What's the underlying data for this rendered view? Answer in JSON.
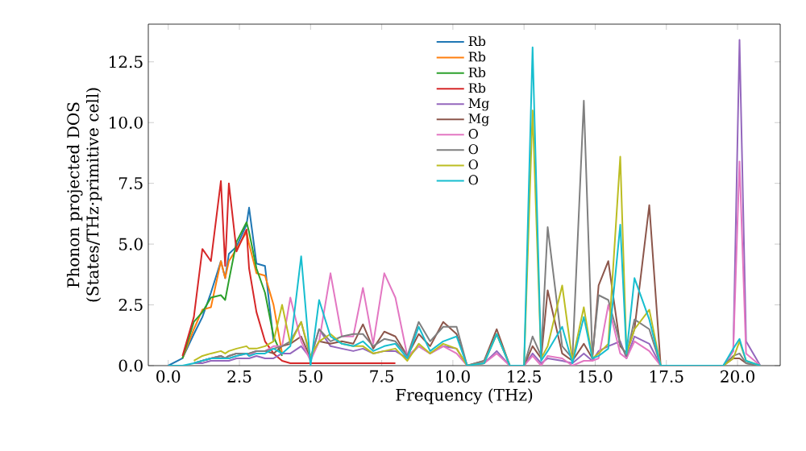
{
  "chart_data": {
    "type": "line",
    "xlabel": "Frequency (THz)",
    "ylabel": "Phonon projected DOS (States/THz·primitive cell)",
    "xlim": [
      -0.7,
      21.5
    ],
    "ylim": [
      0,
      14.05
    ],
    "xticks": [
      {
        "value": 0,
        "label": "0.0"
      },
      {
        "value": 2.5,
        "label": "2.5"
      },
      {
        "value": 5,
        "label": "5.0"
      },
      {
        "value": 7.5,
        "label": "7.5"
      },
      {
        "value": 10,
        "label": "10.0"
      },
      {
        "value": 12.5,
        "label": "12.5"
      },
      {
        "value": 15,
        "label": "15.0"
      },
      {
        "value": 17.5,
        "label": "17.5"
      },
      {
        "value": 20,
        "label": "20.0"
      }
    ],
    "yticks": [
      {
        "value": 0,
        "label": "0.0"
      },
      {
        "value": 2.5,
        "label": "2.5"
      },
      {
        "value": 5,
        "label": "5.0"
      },
      {
        "value": 7.5,
        "label": "7.5"
      },
      {
        "value": 10,
        "label": "10.0"
      },
      {
        "value": 12.5,
        "label": "12.5"
      }
    ],
    "legend": "top",
    "grid": false,
    "marker": "none",
    "line_style": "solid",
    "x": [
      0,
      0.5,
      0.9,
      1.2,
      1.5,
      1.85,
      2.0,
      2.13,
      2.4,
      2.75,
      2.84,
      3.1,
      3.4,
      3.7,
      4.0,
      4.29,
      4.67,
      5.0,
      5.3,
      5.7,
      6.1,
      6.5,
      6.84,
      7.2,
      7.59,
      7.98,
      8.4,
      8.8,
      9.2,
      9.66,
      10.13,
      10.5,
      11.1,
      11.54,
      12.0,
      12.5,
      12.8,
      13.1,
      13.33,
      13.84,
      14.2,
      14.6,
      14.9,
      15.12,
      15.46,
      15.88,
      16.1,
      16.38,
      16.9,
      17.3,
      19.5,
      19.85,
      20.07,
      20.3,
      20.8
    ],
    "series": [
      {
        "name": "Rb",
        "color": "#1f77b4",
        "values": [
          0,
          0.3,
          1.3,
          2.0,
          3.0,
          4.3,
          3.6,
          4.6,
          4.9,
          5.8,
          6.5,
          4.2,
          4.1,
          1.0,
          null,
          null,
          null,
          null,
          null,
          null,
          null,
          null,
          null,
          null,
          null,
          null,
          null,
          null,
          null,
          null,
          null,
          null,
          null,
          null,
          null,
          null,
          null,
          null,
          null,
          null,
          null,
          null,
          null,
          null,
          null,
          null,
          null,
          null,
          null,
          null,
          null,
          null,
          null,
          null,
          null
        ]
      },
      {
        "name": "Rb",
        "color": "#ff7f0e",
        "values": [
          null,
          0.3,
          1.5,
          2.3,
          2.4,
          4.3,
          3.6,
          4.3,
          4.8,
          5.5,
          5.0,
          3.8,
          3.7,
          2.5,
          0.5,
          null,
          null,
          null,
          null,
          null,
          null,
          null,
          null,
          null,
          null,
          null,
          null,
          null,
          null,
          null,
          null,
          null,
          null,
          null,
          null,
          null,
          null,
          null,
          null,
          null,
          null,
          null,
          null,
          null,
          null,
          null,
          null,
          null,
          null,
          null,
          null,
          null,
          null,
          null,
          null
        ]
      },
      {
        "name": "Rb",
        "color": "#2ca02c",
        "values": [
          null,
          0.3,
          1.8,
          2.2,
          2.8,
          2.9,
          2.7,
          3.5,
          5.1,
          5.9,
          5.5,
          4.0,
          3.0,
          1.2,
          0.4,
          null,
          null,
          null,
          null,
          null,
          null,
          null,
          null,
          null,
          null,
          null,
          null,
          null,
          null,
          null,
          null,
          null,
          null,
          null,
          null,
          null,
          null,
          null,
          null,
          null,
          null,
          null,
          null,
          null,
          null,
          null,
          null,
          null,
          null,
          null,
          null,
          null,
          null,
          null,
          null
        ]
      },
      {
        "name": "Rb",
        "color": "#d62728",
        "values": [
          null,
          0.4,
          2.0,
          4.8,
          4.3,
          7.6,
          4.1,
          7.5,
          4.7,
          5.6,
          4.0,
          2.2,
          1.0,
          0.5,
          0.2,
          0.1,
          0.1,
          0.1,
          0.1,
          0.1,
          0.1,
          0.1,
          0.1,
          0.1,
          0.1,
          0.1,
          null,
          null,
          null,
          null,
          null,
          null,
          null,
          null,
          null,
          null,
          null,
          null,
          null,
          null,
          null,
          null,
          null,
          null,
          null,
          null,
          null,
          null,
          null,
          null,
          null,
          null,
          null,
          null,
          null
        ]
      },
      {
        "name": "Mg",
        "color": "#9467bd",
        "values": [
          null,
          null,
          0.1,
          0.1,
          0.2,
          0.2,
          0.2,
          0.2,
          0.3,
          0.3,
          0.3,
          0.4,
          0.3,
          0.3,
          0.5,
          0.5,
          0.8,
          0.3,
          1.5,
          0.8,
          0.7,
          0.6,
          0.7,
          0.5,
          0.6,
          0.6,
          0.3,
          0.8,
          0.5,
          0.8,
          0.7,
          0,
          0.1,
          0.6,
          0,
          0,
          0.5,
          0.1,
          0.3,
          0.2,
          0.1,
          0.5,
          0.2,
          0.6,
          0.8,
          1.0,
          0.3,
          1.2,
          0.9,
          0,
          0,
          0.6,
          13.4,
          1.0,
          0
        ]
      },
      {
        "name": "Mg",
        "color": "#8c564b",
        "values": [
          null,
          null,
          0.1,
          0.2,
          0.3,
          0.4,
          0.3,
          0.4,
          0.5,
          0.5,
          0.5,
          0.6,
          0.6,
          0.5,
          0.8,
          0.9,
          1.2,
          0.3,
          1.0,
          0.9,
          1.0,
          0.9,
          1.7,
          0.7,
          1.4,
          1.2,
          0.4,
          1.3,
          0.8,
          1.8,
          1.3,
          0,
          0.2,
          1.5,
          0,
          0,
          0.8,
          0.3,
          3.1,
          0.5,
          0.2,
          0.9,
          0.3,
          3.3,
          4.3,
          0.8,
          0.5,
          1.5,
          6.6,
          0,
          0,
          0.3,
          0.3,
          0.1,
          0
        ]
      },
      {
        "name": "O",
        "color": "#e377c2",
        "values": [
          null,
          null,
          0.1,
          0.2,
          0.3,
          0.4,
          0.3,
          0.3,
          0.4,
          0.5,
          0.4,
          0.6,
          0.6,
          0.8,
          0.8,
          2.8,
          1.0,
          0.2,
          1.0,
          3.8,
          1.2,
          1.2,
          3.2,
          0.9,
          3.8,
          2.8,
          0.4,
          0.8,
          0.5,
          0.8,
          0.5,
          0,
          0.1,
          0.5,
          0,
          0,
          0.4,
          0,
          0.4,
          0.3,
          0,
          0.2,
          0.2,
          0.3,
          2.5,
          0.5,
          0.3,
          1.0,
          0.6,
          0,
          0,
          0.6,
          8.4,
          0.5,
          0
        ]
      },
      {
        "name": "O",
        "color": "#7f7f7f",
        "values": [
          null,
          null,
          0.1,
          0.2,
          0.3,
          0.4,
          0.3,
          0.4,
          0.5,
          0.5,
          0.5,
          0.6,
          0.6,
          0.7,
          0.8,
          1.0,
          1.8,
          0.3,
          1.5,
          1.0,
          1.2,
          1.3,
          1.3,
          0.8,
          1.1,
          1.0,
          0.4,
          1.8,
          1.0,
          1.6,
          1.6,
          0,
          0.2,
          1.3,
          0,
          0,
          1.2,
          0.4,
          5.7,
          0.8,
          0.3,
          10.9,
          0.4,
          2.9,
          2.7,
          0.9,
          0.4,
          1.9,
          1.5,
          0,
          0,
          0.4,
          0.5,
          0.1,
          0
        ]
      },
      {
        "name": "O",
        "color": "#bcbd22",
        "values": [
          null,
          null,
          0.2,
          0.4,
          0.5,
          0.6,
          0.5,
          0.6,
          0.7,
          0.8,
          0.7,
          0.7,
          0.8,
          1.0,
          2.5,
          0.9,
          1.8,
          0.4,
          1.0,
          1.3,
          0.9,
          0.8,
          0.8,
          0.5,
          0.6,
          0.7,
          0.2,
          0.9,
          0.5,
          0.9,
          0.7,
          0,
          0.1,
          1.3,
          0,
          0,
          10.5,
          0.3,
          0.8,
          3.3,
          0.2,
          2.4,
          0.3,
          0.5,
          0.9,
          8.6,
          0.5,
          1.5,
          2.3,
          0,
          0,
          0.3,
          1.0,
          0.2,
          0
        ]
      },
      {
        "name": "O",
        "color": "#17becf",
        "values": [
          0,
          0,
          0.1,
          0.2,
          0.3,
          0.3,
          0.3,
          0.3,
          0.4,
          0.5,
          0.4,
          0.5,
          0.5,
          0.7,
          0.5,
          0.8,
          4.5,
          0,
          2.7,
          1.2,
          0.9,
          0.8,
          1.0,
          0.6,
          0.8,
          0.9,
          0.3,
          1.6,
          0.6,
          1.0,
          1.2,
          0,
          0.1,
          1.3,
          0,
          0,
          13.1,
          0.2,
          0.6,
          1.6,
          0.1,
          2.0,
          0.3,
          0.4,
          0.7,
          5.8,
          0.5,
          3.6,
          1.9,
          0,
          0,
          0.7,
          1.1,
          0.2,
          0
        ]
      }
    ]
  }
}
